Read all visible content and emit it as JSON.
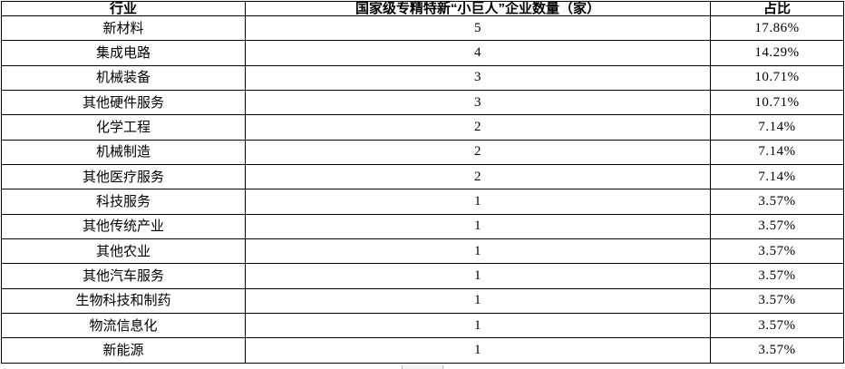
{
  "colors": {
    "border": "#000000",
    "text": "#000000",
    "background": "#ffffff"
  },
  "table": {
    "headers": [
      "行业",
      "国家级专精特新“小巨人”企业数量（家）",
      "占比"
    ],
    "rows": [
      {
        "industry": "新材料",
        "count": "5",
        "share": "17.86%"
      },
      {
        "industry": "集成电路",
        "count": "4",
        "share": "14.29%"
      },
      {
        "industry": "机械装备",
        "count": "3",
        "share": "10.71%"
      },
      {
        "industry": "其他硬件服务",
        "count": "3",
        "share": "10.71%"
      },
      {
        "industry": "化学工程",
        "count": "2",
        "share": "7.14%"
      },
      {
        "industry": "机械制造",
        "count": "2",
        "share": "7.14%"
      },
      {
        "industry": "其他医疗服务",
        "count": "2",
        "share": "7.14%"
      },
      {
        "industry": "科技服务",
        "count": "1",
        "share": "3.57%"
      },
      {
        "industry": "其他传统产业",
        "count": "1",
        "share": "3.57%"
      },
      {
        "industry": "其他农业",
        "count": "1",
        "share": "3.57%"
      },
      {
        "industry": "其他汽车服务",
        "count": "1",
        "share": "3.57%"
      },
      {
        "industry": "生物科技和制药",
        "count": "1",
        "share": "3.57%"
      },
      {
        "industry": "物流信息化",
        "count": "1",
        "share": "3.57%"
      },
      {
        "industry": "新能源",
        "count": "1",
        "share": "3.57%"
      }
    ]
  }
}
